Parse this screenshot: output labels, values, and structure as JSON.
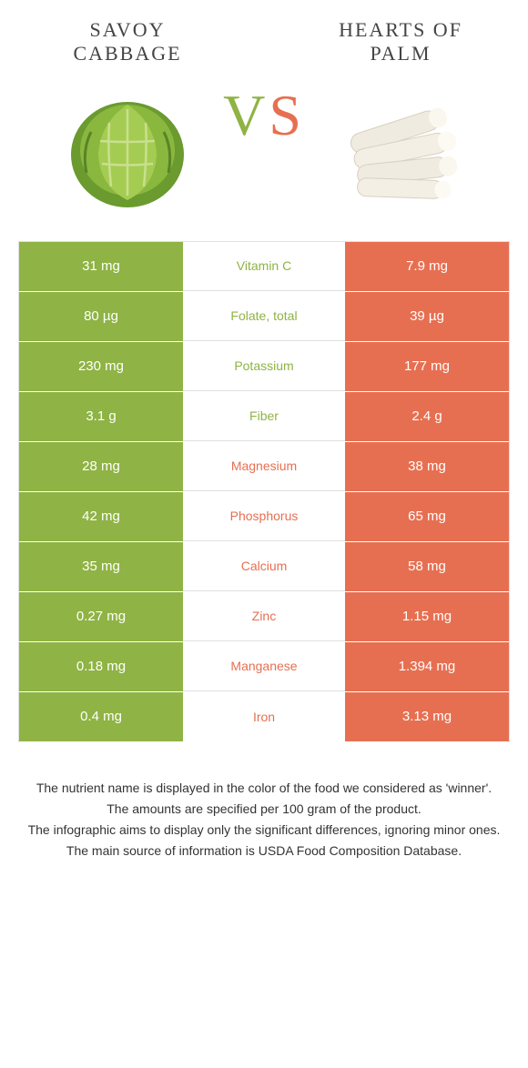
{
  "colors": {
    "left": "#8fb344",
    "right": "#e76f51",
    "text": "#333333",
    "white": "#ffffff"
  },
  "foods": {
    "left": {
      "name": "SAVOY CABBAGE"
    },
    "right": {
      "name": "HEARTS OF PALM"
    }
  },
  "vs": {
    "v": "V",
    "s": "S"
  },
  "rows": [
    {
      "left": "31 mg",
      "label": "Vitamin C",
      "right": "7.9 mg",
      "winner": "left"
    },
    {
      "left": "80 µg",
      "label": "Folate, total",
      "right": "39 µg",
      "winner": "left"
    },
    {
      "left": "230 mg",
      "label": "Potassium",
      "right": "177 mg",
      "winner": "left"
    },
    {
      "left": "3.1 g",
      "label": "Fiber",
      "right": "2.4 g",
      "winner": "left"
    },
    {
      "left": "28 mg",
      "label": "Magnesium",
      "right": "38 mg",
      "winner": "right"
    },
    {
      "left": "42 mg",
      "label": "Phosphorus",
      "right": "65 mg",
      "winner": "right"
    },
    {
      "left": "35 mg",
      "label": "Calcium",
      "right": "58 mg",
      "winner": "right"
    },
    {
      "left": "0.27 mg",
      "label": "Zinc",
      "right": "1.15 mg",
      "winner": "right"
    },
    {
      "left": "0.18 mg",
      "label": "Manganese",
      "right": "1.394 mg",
      "winner": "right"
    },
    {
      "left": "0.4 mg",
      "label": "Iron",
      "right": "3.13 mg",
      "winner": "right"
    }
  ],
  "footer": {
    "line1": "The nutrient name is displayed in the color of the food we considered as 'winner'.",
    "line2": "The amounts are specified per 100 gram of the product.",
    "line3": "The infographic aims to display only the significant differences, ignoring minor ones.",
    "line4": "The main source of information is USDA Food Composition Database."
  }
}
